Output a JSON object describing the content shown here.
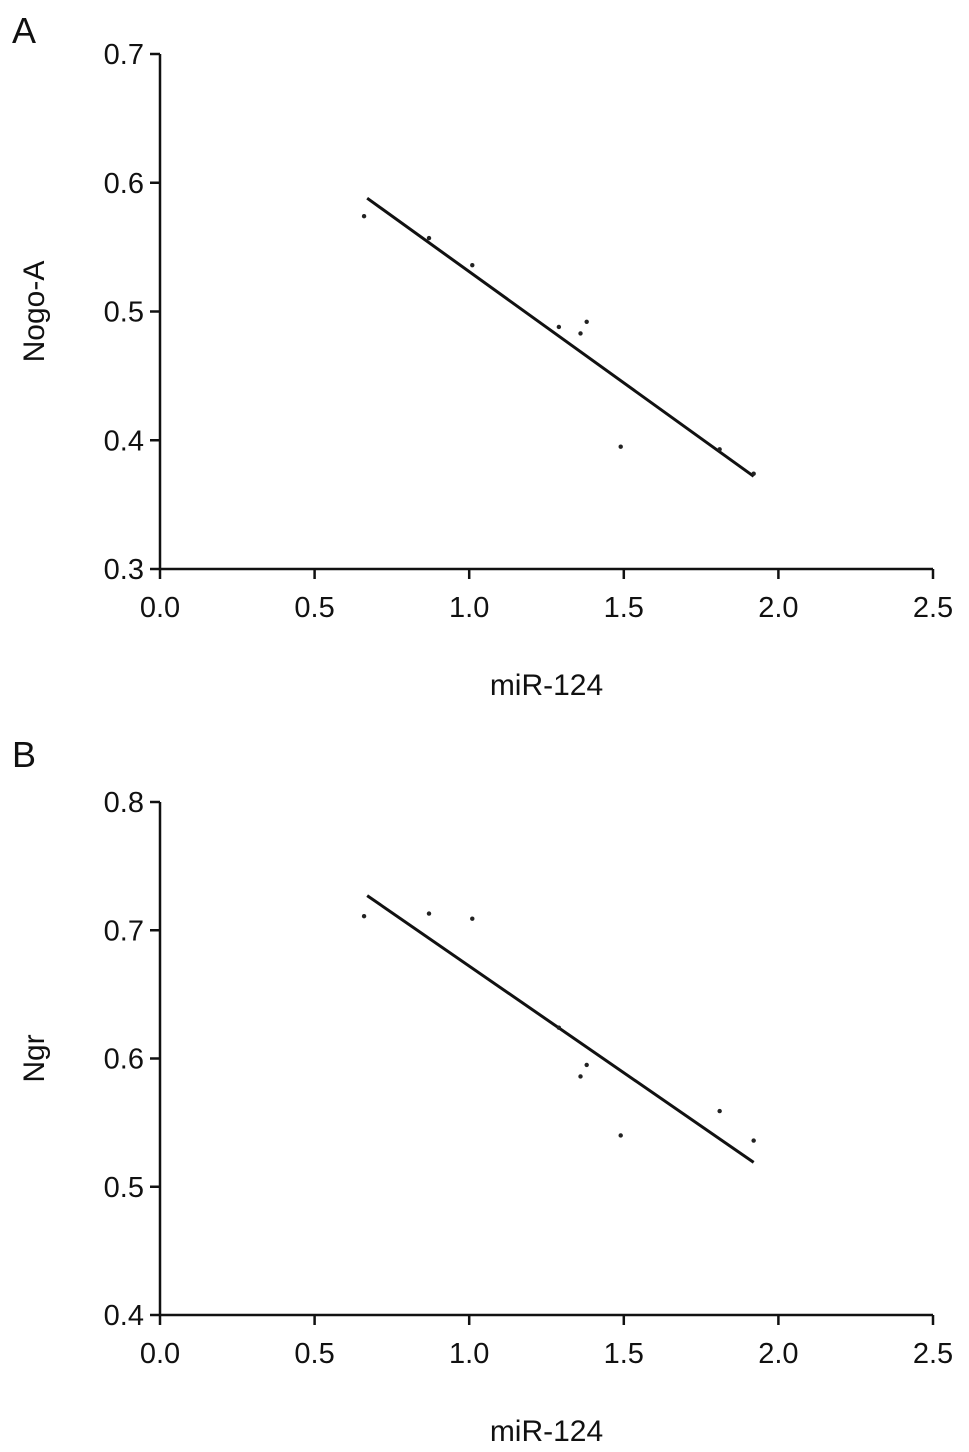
{
  "panels": [
    {
      "label": "A",
      "chart_data": {
        "type": "scatter",
        "title": "",
        "xlabel": "miR-124",
        "ylabel": "Nogo-A",
        "xlim": [
          0.0,
          2.5
        ],
        "ylim": [
          0.3,
          0.7
        ],
        "xticks": [
          "0.0",
          "0.5",
          "1.0",
          "1.5",
          "2.0",
          "2.5"
        ],
        "yticks": [
          "0.3",
          "0.4",
          "0.5",
          "0.6",
          "0.7"
        ],
        "grid": false,
        "legend": "none",
        "points": [
          {
            "x": 0.66,
            "y": 0.574
          },
          {
            "x": 0.87,
            "y": 0.557
          },
          {
            "x": 1.01,
            "y": 0.536
          },
          {
            "x": 1.29,
            "y": 0.488
          },
          {
            "x": 1.36,
            "y": 0.483
          },
          {
            "x": 1.38,
            "y": 0.492
          },
          {
            "x": 1.49,
            "y": 0.395
          },
          {
            "x": 1.81,
            "y": 0.393
          },
          {
            "x": 1.92,
            "y": 0.374
          }
        ],
        "fit_line": {
          "x": [
            0.67,
            1.92
          ],
          "y": [
            0.588,
            0.372
          ]
        },
        "marker_color": "#222222",
        "line_color": "#111111"
      }
    },
    {
      "label": "B",
      "chart_data": {
        "type": "scatter",
        "title": "",
        "xlabel": "miR-124",
        "ylabel": "Ngr",
        "xlim": [
          0.0,
          2.5
        ],
        "ylim": [
          0.4,
          0.8
        ],
        "xticks": [
          "0.0",
          "0.5",
          "1.0",
          "1.5",
          "2.0",
          "2.5"
        ],
        "yticks": [
          "0.4",
          "0.5",
          "0.6",
          "0.7",
          "0.8"
        ],
        "grid": false,
        "legend": "none",
        "points": [
          {
            "x": 0.66,
            "y": 0.711
          },
          {
            "x": 0.87,
            "y": 0.713
          },
          {
            "x": 1.01,
            "y": 0.709
          },
          {
            "x": 1.29,
            "y": 0.624
          },
          {
            "x": 1.36,
            "y": 0.586
          },
          {
            "x": 1.38,
            "y": 0.595
          },
          {
            "x": 1.49,
            "y": 0.54
          },
          {
            "x": 1.81,
            "y": 0.559
          },
          {
            "x": 1.92,
            "y": 0.536
          }
        ],
        "fit_line": {
          "x": [
            0.67,
            1.92
          ],
          "y": [
            0.727,
            0.519
          ]
        },
        "marker_color": "#222222",
        "line_color": "#111111"
      }
    }
  ]
}
